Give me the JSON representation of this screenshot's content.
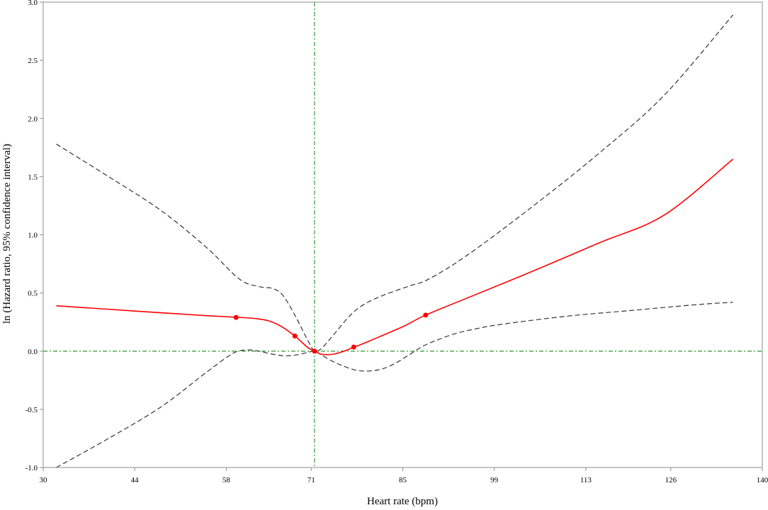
{
  "chart_data": {
    "type": "line",
    "title": "",
    "xlabel": "Heart rate (bpm)",
    "ylabel": "ln (Hazard ratio, 95% confidence interval)",
    "xlim": [
      30,
      140
    ],
    "ylim": [
      -1.0,
      3.0
    ],
    "x_ticks": [
      "30",
      "44",
      "58",
      "71",
      "85",
      "99",
      "113",
      "126",
      "140"
    ],
    "y_ticks": [
      "-1.0",
      "-0.5",
      "0.0",
      "0.5",
      "1.0",
      "1.5",
      "2.0",
      "2.5",
      "3.0"
    ],
    "grid": false,
    "reference_lines": {
      "x": 71.5,
      "y": 0.0,
      "color": "#2e9a2e",
      "style": "dash-dot"
    },
    "series": [
      {
        "role": "estimate",
        "color": "#ff0000",
        "style": "solid",
        "x": [
          32,
          40,
          48,
          55,
          60,
          62.5,
          64.5,
          66.5,
          68.5,
          69.5,
          70.5,
          71.5,
          72.5,
          73.5,
          74.5,
          75.5,
          76.5,
          77.5,
          78.5,
          80,
          85,
          88.5,
          95,
          105,
          115,
          125,
          135.5
        ],
        "y": [
          0.39,
          0.36,
          0.33,
          0.305,
          0.29,
          0.28,
          0.26,
          0.21,
          0.13,
          0.08,
          0.03,
          0.0,
          -0.025,
          -0.03,
          -0.025,
          -0.01,
          0.01,
          0.035,
          0.055,
          0.09,
          0.21,
          0.31,
          0.46,
          0.69,
          0.93,
          1.17,
          1.65
        ]
      },
      {
        "role": "upper-95ci",
        "color": "#333333",
        "style": "dashed",
        "x": [
          32,
          40,
          48,
          55,
          60,
          63,
          65,
          66.5,
          68,
          69.5,
          70.5,
          71.5,
          72.5,
          73.5,
          75,
          77,
          79,
          82,
          86,
          89,
          95,
          105,
          115,
          125,
          135.5
        ],
        "y": [
          1.78,
          1.5,
          1.21,
          0.89,
          0.62,
          0.555,
          0.54,
          0.49,
          0.36,
          0.2,
          0.09,
          0.0,
          0.02,
          0.08,
          0.18,
          0.31,
          0.4,
          0.48,
          0.56,
          0.62,
          0.83,
          1.25,
          1.7,
          2.2,
          2.89
        ]
      },
      {
        "role": "lower-95ci",
        "color": "#333333",
        "style": "dashed",
        "x": [
          32,
          40,
          48,
          55,
          59,
          61,
          63,
          65,
          67,
          69,
          70.5,
          71.5,
          72.5,
          74,
          76,
          78,
          80,
          82,
          84,
          86,
          88,
          90,
          93,
          96,
          100,
          110,
          120,
          130,
          135.5
        ],
        "y": [
          -1.0,
          -0.75,
          -0.48,
          -0.18,
          -0.02,
          0.01,
          0.0,
          -0.025,
          -0.04,
          -0.03,
          -0.01,
          0.0,
          -0.03,
          -0.08,
          -0.13,
          -0.165,
          -0.17,
          -0.15,
          -0.1,
          -0.03,
          0.04,
          0.09,
          0.15,
          0.19,
          0.23,
          0.3,
          0.35,
          0.4,
          0.42
        ]
      }
    ],
    "knots": {
      "x": [
        59.5,
        68.5,
        71.5,
        77.5,
        88.5
      ],
      "y": [
        0.29,
        0.13,
        0.0,
        0.035,
        0.31
      ],
      "color": "#ff0000"
    }
  }
}
